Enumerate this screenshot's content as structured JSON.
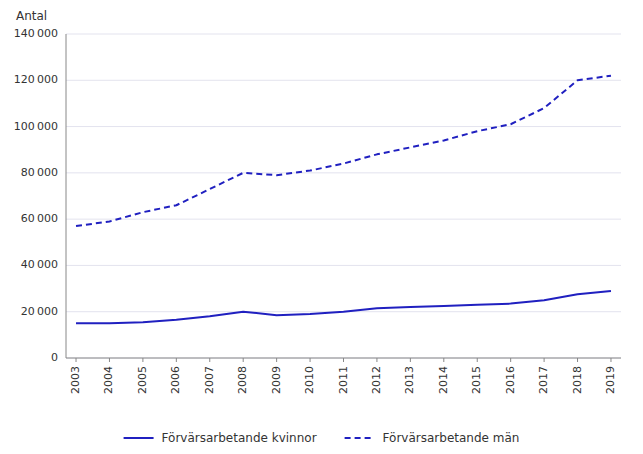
{
  "chart_data": {
    "type": "line",
    "y_label": "Antal",
    "x": [
      2003,
      2004,
      2005,
      2006,
      2007,
      2008,
      2009,
      2010,
      2011,
      2012,
      2013,
      2014,
      2015,
      2016,
      2017,
      2018,
      2019
    ],
    "series": [
      {
        "name": "Förvärsarbetande kvinnor",
        "color": "#2020C0",
        "line_style": "solid",
        "values": [
          15000,
          15000,
          15500,
          16500,
          18000,
          20000,
          18500,
          19000,
          20000,
          21500,
          22000,
          22500,
          23000,
          23500,
          25000,
          27500,
          29000
        ]
      },
      {
        "name": "Förvärsarbetande män",
        "color": "#2020C0",
        "line_style": "dashed",
        "values": [
          57000,
          59000,
          63000,
          66000,
          73000,
          80000,
          79000,
          81000,
          84000,
          88000,
          91000,
          94000,
          98000,
          101000,
          108000,
          120000,
          122000
        ]
      }
    ],
    "xlim": [
      2002.7,
      2019.3
    ],
    "xticks": [
      2003,
      2004,
      2005,
      2006,
      2007,
      2008,
      2009,
      2010,
      2011,
      2012,
      2013,
      2014,
      2015,
      2016,
      2017,
      2018,
      2019
    ],
    "ylim": [
      0,
      140000
    ],
    "yticks": [
      0,
      {
        "value": 20000,
        "label": "20 000"
      },
      {
        "value": 40000,
        "label": "40 000"
      },
      {
        "value": 60000,
        "label": "60 000"
      },
      {
        "value": 80000,
        "label": "80 000"
      },
      {
        "value": 100000,
        "label": "100 000"
      },
      {
        "value": 120000,
        "label": "120 000"
      },
      {
        "value": 140000,
        "label": "140 000"
      }
    ],
    "grid": true,
    "legend": "bottom"
  }
}
